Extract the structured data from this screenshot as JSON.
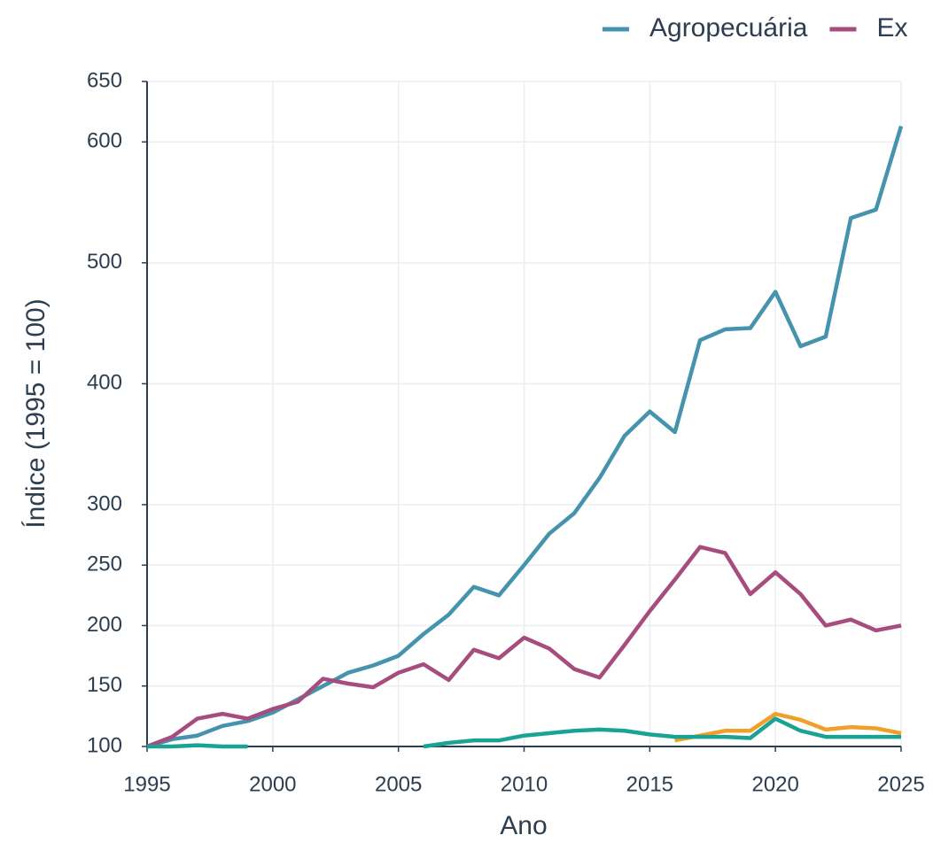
{
  "chart_data": {
    "type": "line",
    "x_label": "Ano",
    "y_label": "Índice (1995 = 100)",
    "x": [
      1995,
      1996,
      1997,
      1998,
      1999,
      2000,
      2001,
      2002,
      2003,
      2004,
      2005,
      2006,
      2007,
      2008,
      2009,
      2010,
      2011,
      2012,
      2013,
      2014,
      2015,
      2016,
      2017,
      2018,
      2019,
      2020,
      2021,
      2022,
      2023,
      2024,
      2025
    ],
    "series": [
      {
        "name": "Agropecuária",
        "color": "#4593ad",
        "values": [
          100,
          106,
          109,
          117,
          121,
          128,
          139,
          150,
          161,
          167,
          175,
          193,
          209,
          232,
          225,
          250,
          276,
          293,
          322,
          357,
          377,
          360,
          436,
          445,
          446,
          476,
          431,
          439,
          537,
          544,
          613
        ]
      },
      {
        "name": "Ex",
        "color": "#a64d7e",
        "values": [
          100,
          108,
          123,
          127,
          123,
          131,
          137,
          156,
          152,
          149,
          161,
          168,
          155,
          180,
          173,
          190,
          181,
          164,
          157,
          184,
          212,
          238,
          265,
          260,
          226,
          244,
          226,
          200,
          205,
          196,
          200
        ]
      },
      {
        "color": "#f0a02a",
        "values": [
          null,
          null,
          null,
          null,
          null,
          null,
          null,
          null,
          null,
          null,
          null,
          null,
          null,
          null,
          null,
          null,
          null,
          null,
          null,
          null,
          null,
          105,
          109,
          113,
          113,
          127,
          122,
          114,
          116,
          115,
          111
        ]
      },
      {
        "color": "#1aa393",
        "values": [
          100,
          100,
          101,
          100,
          100,
          null,
          null,
          null,
          null,
          null,
          null,
          100,
          103,
          105,
          105,
          109,
          111,
          113,
          114,
          113,
          110,
          108,
          108,
          108,
          107,
          123,
          113,
          108,
          108,
          108,
          108
        ]
      }
    ],
    "xlim": [
      1995,
      2025
    ],
    "xticks": [
      1995,
      2000,
      2005,
      2010,
      2015,
      2020,
      2025
    ],
    "ylim": [
      100,
      650
    ],
    "yticks": [
      100,
      150,
      200,
      250,
      300,
      400,
      500,
      600,
      650
    ],
    "grid": true,
    "legend": "top"
  }
}
